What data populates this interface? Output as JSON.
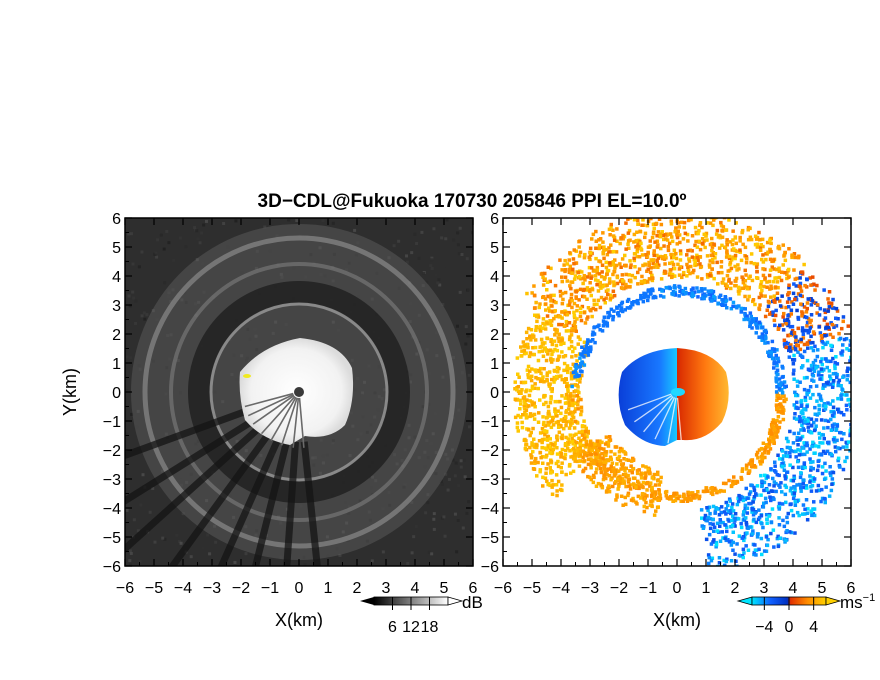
{
  "title": "3D−CDL@Fukuoka 170730 205846 PPI EL=10.0º",
  "chart_data": [
    {
      "type": "heatmap",
      "panel": "left",
      "xlabel": "X(km)",
      "ylabel": "Y(km)",
      "xlim": [
        -6,
        6
      ],
      "ylim": [
        -6,
        6
      ],
      "xticks": [
        "−6",
        "−5",
        "−4",
        "−3",
        "−2",
        "−1",
        "0",
        "1",
        "2",
        "3",
        "4",
        "5",
        "6"
      ],
      "yticks": [
        "6",
        "5",
        "4",
        "3",
        "2",
        "1",
        "0",
        "−1",
        "−2",
        "−3",
        "−4",
        "−5",
        "−6"
      ],
      "colorbar": {
        "unit": "dB",
        "ticks": [
          "6",
          "12",
          "18"
        ],
        "tick_values": [
          6,
          12,
          18
        ],
        "range": [
          0,
          24
        ],
        "colors": [
          "#000000",
          "#ffffff"
        ]
      },
      "features": {
        "bright_core_radius_km": 2.1,
        "ring_radii_km": [
          3.1,
          3.6,
          4.4,
          5.3
        ],
        "marker": [
          0,
          0
        ]
      }
    },
    {
      "type": "heatmap",
      "panel": "right",
      "xlabel": "X(km)",
      "xlim": [
        -6,
        6
      ],
      "ylim": [
        -6,
        6
      ],
      "xticks": [
        "−6",
        "−5",
        "−4",
        "−3",
        "−2",
        "−1",
        "0",
        "1",
        "2",
        "3",
        "4",
        "5",
        "6"
      ],
      "yticks": [
        "6",
        "5",
        "4",
        "3",
        "2",
        "1",
        "0",
        "−1",
        "−2",
        "−3",
        "−4",
        "−5",
        "−6"
      ],
      "colorbar": {
        "unit": "ms",
        "unit_sup": "−1",
        "ticks": [
          "−4",
          "0",
          "4"
        ],
        "tick_values": [
          -4,
          0,
          4
        ],
        "range": [
          -6,
          6
        ],
        "colors": [
          "#00e5ff",
          "#1060ff",
          "#0030c0",
          "#e03000",
          "#ff8c00",
          "#ffd000"
        ]
      },
      "features": {
        "core_radius_km": 2.0,
        "inner_ring_radius_km": 3.6,
        "outer_band_radius_km": [
          4.2,
          5.8
        ]
      }
    }
  ]
}
